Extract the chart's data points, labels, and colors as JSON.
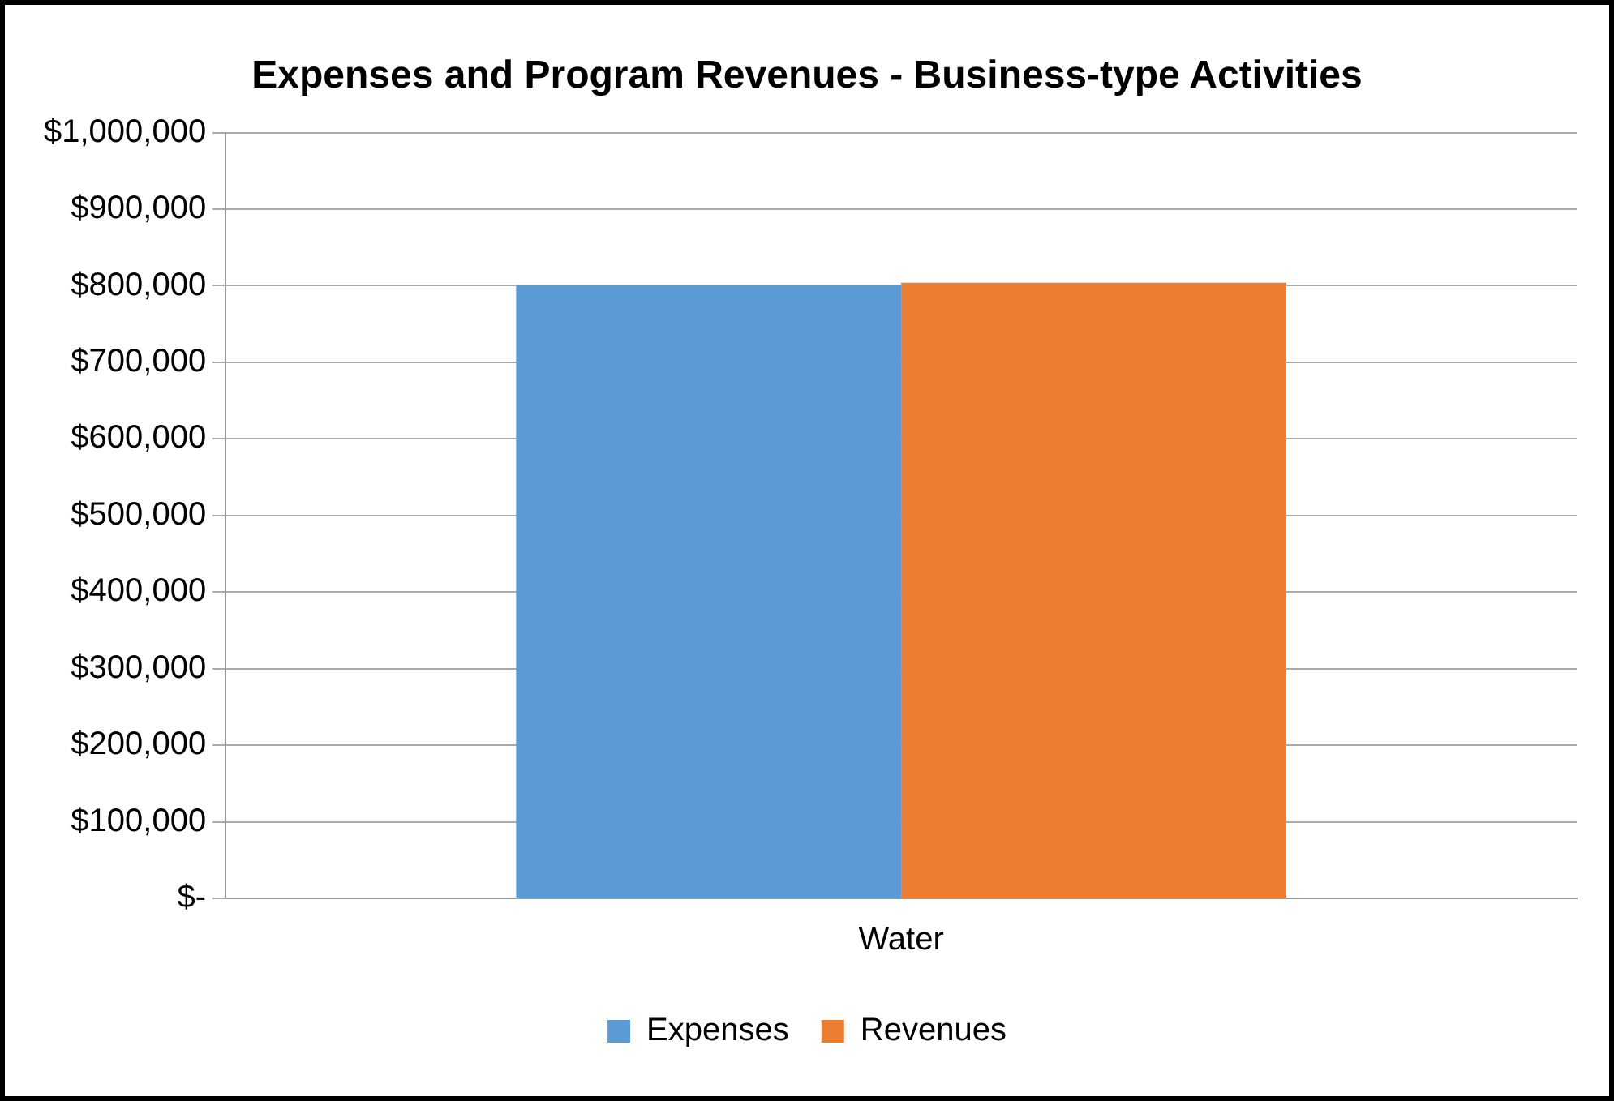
{
  "chart_data": {
    "type": "bar",
    "title": "Expenses and Program Revenues - Business-type Activities",
    "categories": [
      "Water"
    ],
    "series": [
      {
        "name": "Expenses",
        "color": "#5b9bd5",
        "values": [
          801000
        ]
      },
      {
        "name": "Revenues",
        "color": "#ed7d31",
        "values": [
          804000
        ]
      }
    ],
    "ylim": [
      0,
      1000000
    ],
    "yticks": [
      {
        "value": 0,
        "label": "$-"
      },
      {
        "value": 100000,
        "label": "$100,000"
      },
      {
        "value": 200000,
        "label": "$200,000"
      },
      {
        "value": 300000,
        "label": "$300,000"
      },
      {
        "value": 400000,
        "label": "$400,000"
      },
      {
        "value": 500000,
        "label": "$500,000"
      },
      {
        "value": 600000,
        "label": "$600,000"
      },
      {
        "value": 700000,
        "label": "$700,000"
      },
      {
        "value": 800000,
        "label": "$800,000"
      },
      {
        "value": 900000,
        "label": "$900,000"
      },
      {
        "value": 1000000,
        "label": "$1,000,000"
      }
    ],
    "grid": "y",
    "legend": "bottom"
  }
}
